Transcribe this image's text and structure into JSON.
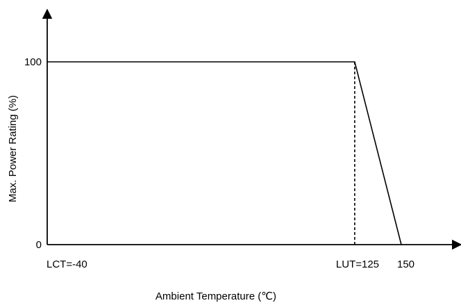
{
  "chart_data": {
    "type": "line",
    "title": "",
    "xlabel": "Ambient Temperature (℃)",
    "ylabel": "Max. Power Rating (%)",
    "series": [
      {
        "x": [
          -40,
          125,
          150
        ],
        "y": [
          100,
          100,
          0
        ]
      }
    ],
    "x_ticks": [
      {
        "value": -40,
        "label": "LCT=-40"
      },
      {
        "value": 125,
        "label": "LUT=125"
      },
      {
        "value": 150,
        "label": "150"
      }
    ],
    "y_ticks": [
      {
        "value": 0,
        "label": "0"
      },
      {
        "value": 100,
        "label": "100"
      }
    ],
    "reference_lines": [
      {
        "x": 125,
        "y_from": 0,
        "y_to": 100,
        "style": "dashed"
      }
    ],
    "grid": false,
    "line_color": "#000000"
  }
}
